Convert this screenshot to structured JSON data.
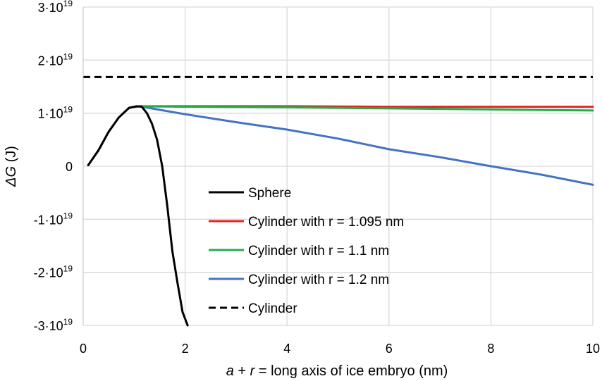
{
  "chart_data": {
    "type": "line",
    "title": "",
    "xlabel": {
      "a": "a",
      "plus": " + ",
      "r": "r",
      "rest": " = long axis of ice embryo (nm)"
    },
    "ylabel": {
      "delta_g": "ΔG",
      "unit": " (J)"
    },
    "xlim": [
      0,
      10
    ],
    "ylim": [
      -3e+19,
      3e+19
    ],
    "grid": true,
    "legend_placement": "center",
    "x_ticks": [
      "0",
      "2",
      "4",
      "6",
      "8",
      "10"
    ],
    "y_ticks": [
      {
        "value": 3e+19,
        "base": "3·10",
        "exp": "19"
      },
      {
        "value": 2e+19,
        "base": "2·10",
        "exp": "19"
      },
      {
        "value": 1e+19,
        "base": "1·10",
        "exp": "19"
      },
      {
        "value": 0,
        "base": "0",
        "exp": ""
      },
      {
        "value": -1e+19,
        "base": "-1·10",
        "exp": "19"
      },
      {
        "value": -2e+19,
        "base": "-2·10",
        "exp": "19"
      },
      {
        "value": -3e+19,
        "base": "-3·10",
        "exp": "19"
      }
    ],
    "series": [
      {
        "name": "Sphere",
        "color": "#000000",
        "dash": "solid",
        "x": [
          0.1,
          0.3,
          0.5,
          0.7,
          0.9,
          1.05,
          1.15,
          1.25,
          1.35,
          1.45,
          1.55,
          1.65,
          1.75,
          1.85,
          1.95,
          2.05
        ],
        "y": [
          2e+17,
          3e+18,
          6.5e+18,
          9.2e+18,
          1.1e+19,
          1.13e+19,
          1.12e+19,
          1e+19,
          8e+18,
          5e+18,
          0.0,
          -7.5e+18,
          -1.6e+19,
          -2.2e+19,
          -2.75e+19,
          -3e+19
        ]
      },
      {
        "name": "Cylinder with r = 1.095 nm",
        "color": "#e8231c",
        "dash": "solid",
        "x": [
          1.1,
          2.0,
          4.0,
          6.0,
          8.0,
          10.0
        ],
        "y": [
          1.13e+19,
          1.13e+19,
          1.13e+19,
          1.12e+19,
          1.12e+19,
          1.12e+19
        ]
      },
      {
        "name": "Cylinder with r = 1.1 nm",
        "color": "#22ad4b",
        "dash": "solid",
        "x": [
          1.1,
          2.0,
          4.0,
          6.0,
          8.0,
          10.0
        ],
        "y": [
          1.13e+19,
          1.12e+19,
          1.11e+19,
          1.09e+19,
          1.07e+19,
          1.05e+19
        ]
      },
      {
        "name": "Cylinder with r = 1.2 nm",
        "color": "#4472c4",
        "dash": "solid",
        "x": [
          0.1,
          0.3,
          0.5,
          0.7,
          0.9,
          1.1,
          2.0,
          3.0,
          4.0,
          5.0,
          6.0,
          7.0,
          8.0,
          9.0,
          10.0
        ],
        "y": [
          2e+17,
          3e+18,
          6.5e+18,
          9.2e+18,
          1.1e+19,
          1.13e+19,
          9.8e+18,
          8.3e+18,
          6.9e+18,
          5.2e+18,
          3.2e+18,
          1.7e+18,
          0.0,
          -1.6e+18,
          -3.5e+18
        ]
      },
      {
        "name": "Cylinder",
        "color": "#000000",
        "dash": "dashed",
        "x": [
          0.0,
          10.0
        ],
        "y": [
          1.68e+19,
          1.68e+19
        ]
      }
    ]
  }
}
